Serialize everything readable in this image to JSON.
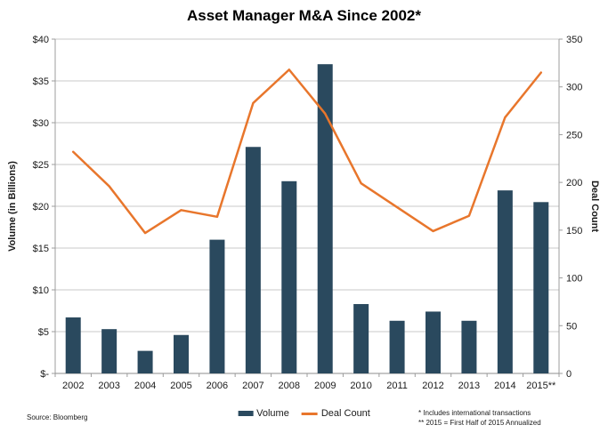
{
  "title": "Asset Manager M&A Since 2002*",
  "source": "Source: Bloomberg",
  "footnotes": [
    "* Includes international transactions",
    "** 2015 = First Half of 2015 Annualized"
  ],
  "legend": {
    "volume_label": "Volume",
    "deal_count_label": "Deal Count"
  },
  "colors": {
    "bar": "#2A495E",
    "line": "#E8762C",
    "grid": "#C8C8C8",
    "axis": "#9C9C9C",
    "bottom_axis": "#8C8C8C",
    "text": "#1A1A1A"
  },
  "chart_data": {
    "type": "bar",
    "subtype": "combo-bar-line-dual-axis",
    "title": "Asset Manager M&A Since 2002*",
    "categories": [
      "2002",
      "2003",
      "2004",
      "2005",
      "2006",
      "2007",
      "2008",
      "2009",
      "2010",
      "2011",
      "2012",
      "2013",
      "2014",
      "2015**"
    ],
    "series": [
      {
        "name": "Volume",
        "type": "bar",
        "axis": "left",
        "values": [
          6.7,
          5.3,
          2.7,
          4.6,
          16.0,
          27.1,
          23.0,
          37.0,
          8.3,
          6.3,
          7.4,
          6.3,
          21.9,
          20.5
        ]
      },
      {
        "name": "Deal Count",
        "type": "line",
        "axis": "right",
        "values": [
          232,
          196,
          147,
          171,
          164,
          283,
          318,
          272,
          199,
          174,
          149,
          165,
          268,
          315
        ]
      }
    ],
    "y_left": {
      "label": "Volume (in Billions)",
      "min": 0,
      "max": 40,
      "tick_step": 5,
      "tick_labels": [
        "$-",
        "$5",
        "$10",
        "$15",
        "$20",
        "$25",
        "$30",
        "$35",
        "$40"
      ]
    },
    "y_right": {
      "label": "Deal Count",
      "min": 0,
      "max": 350,
      "tick_step": 50,
      "tick_labels": [
        "0",
        "50",
        "100",
        "150",
        "200",
        "250",
        "300",
        "350"
      ]
    },
    "grid": true,
    "legend_position": "bottom"
  }
}
